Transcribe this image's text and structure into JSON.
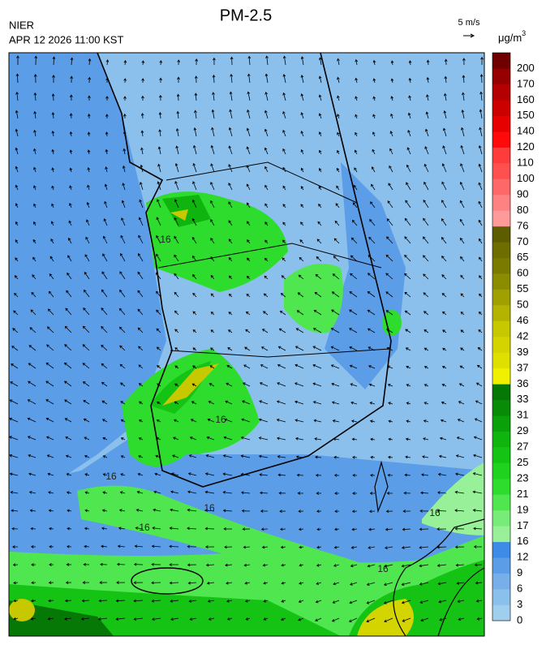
{
  "header": {
    "title": "PM-2.5",
    "agency": "NIER",
    "datetime": "APR 12 2026 11:00 KST",
    "wind_scale": "5 m/s",
    "unit": {
      "base": "μg/m",
      "exponent": "3"
    }
  },
  "colorbar": {
    "levels": [
      0,
      3,
      6,
      9,
      12,
      16,
      17,
      19,
      21,
      23,
      25,
      27,
      29,
      31,
      33,
      36,
      37,
      39,
      42,
      46,
      50,
      55,
      60,
      65,
      70,
      76,
      80,
      90,
      100,
      110,
      120,
      140,
      150,
      160,
      170,
      200
    ],
    "colors": [
      "#a0cfee",
      "#8cc0ec",
      "#77afea",
      "#5c9de8",
      "#3d8be6",
      "#98f098",
      "#78ec78",
      "#50e650",
      "#2edc2e",
      "#1ed21e",
      "#14c314",
      "#0fb40f",
      "#0aa00a",
      "#088c08",
      "#067806",
      "#f0f000",
      "#e0e000",
      "#d4d400",
      "#c8c800",
      "#b4b400",
      "#a0a000",
      "#8c8c00",
      "#7a7a00",
      "#6e6e00",
      "#5c5c00",
      "#ff9a9a",
      "#ff8282",
      "#ff6868",
      "#ff5050",
      "#ff3c3c",
      "#ff0a0a",
      "#e60000",
      "#cd0000",
      "#b40000",
      "#960000",
      "#700000"
    ]
  },
  "map": {
    "contour_labels": [
      16,
      16,
      16,
      16,
      16,
      16,
      16
    ]
  }
}
